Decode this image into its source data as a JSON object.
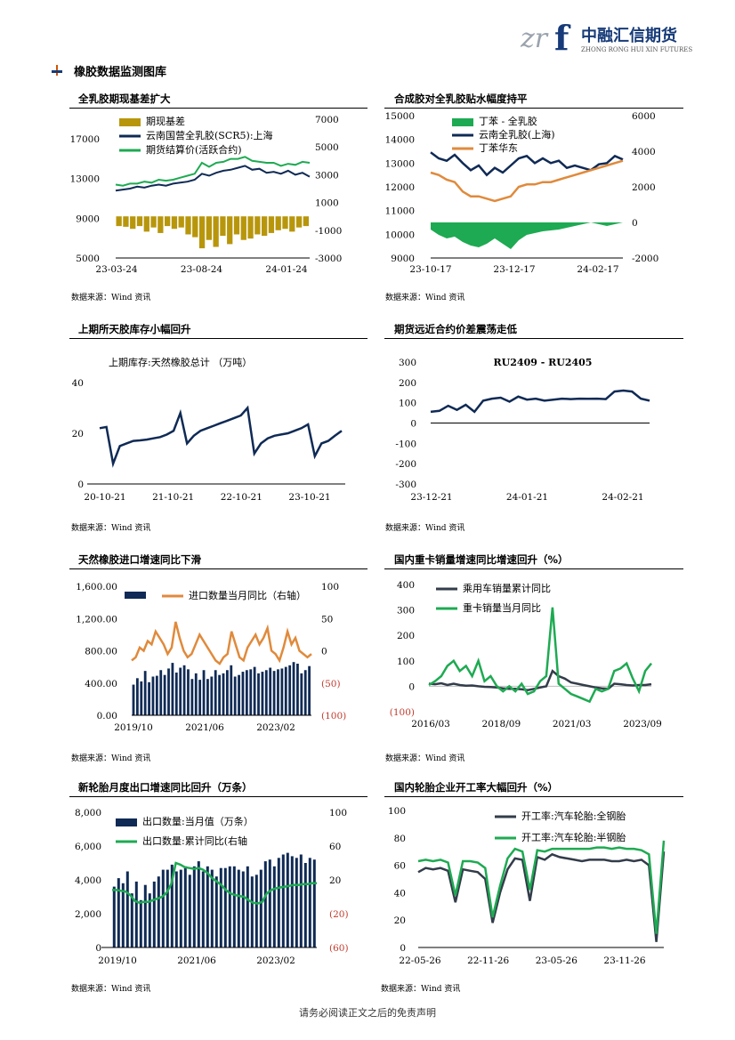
{
  "header": {
    "logo_cn": "中融汇信期货",
    "logo_en": "ZHONG RONG HUI XIN FUTURES",
    "logo_mark": "zrf"
  },
  "section_title": "橡胶数据监测图库",
  "footer": "请务必阅读正文之后的免责声明",
  "source_note": "数据来源：Wind 资讯",
  "colors": {
    "navy": "#0f2a55",
    "green": "#1eaa52",
    "orange": "#e08a3c",
    "gold": "#b8960c",
    "red": "#c0392b"
  },
  "charts": [
    {
      "heading": "全乳胶期现基差扩大",
      "chart_data": {
        "type": "line",
        "x_ticks": [
          "23-03-24",
          "23-08-24",
          "24-01-24"
        ],
        "y_ticks": [
          "17000",
          "13000",
          "9000",
          "5000"
        ],
        "y2_ticks": [
          "7000",
          "5000",
          "3000",
          "1000",
          "-1000",
          "-3000"
        ],
        "ylim": [
          5000,
          19000
        ],
        "y2lim": [
          -3000,
          7000
        ],
        "series": [
          {
            "name": "期现基差",
            "axis": "right",
            "kind": "bar",
            "values": [
              -700,
              -750,
              -900,
              -700,
              -1100,
              -800,
              -1200,
              -700,
              -900,
              -800,
              -1300,
              -1500,
              -2300,
              -1700,
              -2200,
              -1400,
              -2000,
              -1300,
              -1700,
              -1600,
              -1300,
              -1400,
              -1200,
              -1000,
              -900,
              -1100,
              -800,
              -700
            ]
          },
          {
            "name": "云南国营全乳胶(SCR5):上海",
            "axis": "left",
            "kind": "line",
            "values": [
              11800,
              11900,
              12000,
              12200,
              12100,
              12300,
              12400,
              12300,
              12500,
              12600,
              12700,
              12900,
              13500,
              13300,
              13600,
              13800,
              13900,
              14100,
              14300,
              13900,
              14000,
              13600,
              13700,
              13500,
              13800,
              13400,
              13600,
              13200
            ]
          },
          {
            "name": "期货结算价(活跃合约)",
            "axis": "left",
            "kind": "line",
            "values": [
              12400,
              12300,
              12500,
              12500,
              12700,
              12600,
              12900,
              12800,
              12900,
              13100,
              13300,
              13500,
              14600,
              14200,
              14600,
              14700,
              15000,
              15000,
              15200,
              14800,
              14700,
              14600,
              14600,
              14300,
              14500,
              14400,
              14700,
              14600
            ]
          }
        ]
      }
    },
    {
      "heading": "合成胶对全乳胶贴水幅度持平",
      "chart_data": {
        "type": "line",
        "x_ticks": [
          "23-10-17",
          "23-12-17",
          "24-02-17"
        ],
        "y_ticks": [
          "15000",
          "14000",
          "13000",
          "12000",
          "11000",
          "10000",
          "9000"
        ],
        "y2_ticks": [
          "6000",
          "4000",
          "2000",
          "0",
          "-2000"
        ],
        "ylim": [
          9000,
          15000
        ],
        "y2lim": [
          -2000,
          6000
        ],
        "series": [
          {
            "name": "丁苯 - 全乳胶",
            "axis": "right",
            "kind": "area",
            "values": [
              -400,
              -700,
              -900,
              -800,
              -1100,
              -1300,
              -1400,
              -1200,
              -900,
              -1200,
              -1500,
              -1000,
              -700,
              -600,
              -500,
              -450,
              -400,
              -300,
              -200,
              -100,
              0,
              -100,
              -200,
              -100,
              0
            ]
          },
          {
            "name": "云南全乳胶(上海)",
            "axis": "left",
            "kind": "line",
            "values": [
              13450,
              13200,
              13100,
              13350,
              13000,
              12700,
              12900,
              12500,
              12800,
              12600,
              12900,
              13200,
              13300,
              13000,
              13200,
              13000,
              13100,
              12800,
              12900,
              12800,
              12700,
              12950,
              13000,
              13300,
              13150
            ]
          },
          {
            "name": "丁苯华东",
            "axis": "left",
            "kind": "line",
            "values": [
              12600,
              12500,
              12300,
              12200,
              11800,
              11600,
              11600,
              11500,
              11400,
              11500,
              11600,
              12000,
              12100,
              12100,
              12200,
              12200,
              12300,
              12400,
              12500,
              12600,
              12700,
              12800,
              12900,
              13000,
              13100
            ]
          }
        ]
      }
    },
    {
      "heading": "上期所天胶库存小幅回升",
      "chart_data": {
        "type": "line",
        "title": "上期库存:天然橡胶总计 （万吨）",
        "x_ticks": [
          "20-10-21",
          "21-10-21",
          "22-10-21",
          "23-10-21"
        ],
        "y_ticks": [
          "40",
          "20",
          "0"
        ],
        "ylim": [
          0,
          40
        ],
        "series": [
          {
            "name": "上期库存:天然橡胶总计",
            "values": [
              22,
              22.5,
              8,
              15,
              16,
              17,
              17.2,
              17.5,
              18,
              18.5,
              19.5,
              21,
              28,
              16,
              19,
              21,
              22,
              23,
              24,
              25,
              26,
              27,
              30,
              12,
              16,
              18,
              19,
              19.5,
              20,
              21,
              22,
              23.5,
              11,
              16,
              17,
              19,
              21
            ]
          }
        ]
      }
    },
    {
      "heading": "期货远近合约价差震荡走低",
      "chart_data": {
        "type": "line",
        "title": "RU2409 - RU2405",
        "x_ticks": [
          "23-12-21",
          "24-01-21",
          "24-02-21"
        ],
        "y_ticks": [
          "300",
          "200",
          "100",
          "0",
          "-100",
          "-200",
          "-300"
        ],
        "ylim": [
          -300,
          300
        ],
        "series": [
          {
            "name": "RU2409 - RU2405",
            "values": [
              55,
              60,
              85,
              65,
              90,
              55,
              110,
              120,
              125,
              105,
              130,
              115,
              120,
              110,
              115,
              120,
              118,
              120,
              119,
              120,
              118,
              155,
              160,
              155,
              120,
              110
            ]
          }
        ]
      }
    },
    {
      "heading": "天然橡胶进口增速同比下滑",
      "chart_data": {
        "type": "bar",
        "x_ticks": [
          "2019/10",
          "2021/06",
          "2023/02"
        ],
        "y_ticks": [
          "1,600.00",
          "1,200.00",
          "800.00",
          "400.00",
          "0.00"
        ],
        "y2_ticks": [
          "100",
          "50",
          "0",
          "(50)",
          "(100)"
        ],
        "ylim": [
          0,
          1600
        ],
        "y2lim": [
          -100,
          100
        ],
        "series": [
          {
            "name": "",
            "axis": "left",
            "kind": "bar",
            "values": [
              380,
              460,
              420,
              550,
              410,
              480,
              490,
              560,
              500,
              580,
              650,
              530,
              590,
              620,
              570,
              450,
              520,
              440,
              560,
              450,
              480,
              560,
              500,
              520,
              560,
              620,
              480,
              500,
              540,
              560,
              570,
              600,
              520,
              540,
              560,
              590,
              550,
              570,
              580,
              600,
              620,
              660,
              640,
              520,
              560,
              610
            ]
          },
          {
            "name": "进口数量当月同比（右轴）",
            "axis": "right",
            "kind": "line",
            "values": [
              -15,
              -10,
              5,
              0,
              15,
              10,
              30,
              20,
              10,
              -5,
              5,
              45,
              20,
              0,
              -10,
              -5,
              10,
              25,
              15,
              5,
              -5,
              -15,
              -20,
              -10,
              -5,
              30,
              10,
              -10,
              -15,
              5,
              15,
              25,
              10,
              20,
              35,
              0,
              -5,
              -15,
              5,
              30,
              10,
              20,
              0,
              -5,
              -10,
              -5
            ]
          }
        ]
      }
    },
    {
      "heading": "国内重卡销量增速同比增速回升（%）",
      "chart_data": {
        "type": "line",
        "x_ticks": [
          "2016/03",
          "2018/09",
          "2021/03",
          "2023/09"
        ],
        "y_ticks": [
          "400",
          "300",
          "200",
          "100",
          "0",
          "(100)"
        ],
        "ylim": [
          -100,
          400
        ],
        "series": [
          {
            "name": "乘用车销量累计同比",
            "values": [
              10,
              8,
              12,
              5,
              10,
              5,
              2,
              3,
              0,
              -2,
              -3,
              -5,
              -8,
              -10,
              -10,
              -12,
              -15,
              -10,
              -5,
              0,
              60,
              40,
              30,
              15,
              10,
              5,
              0,
              -5,
              -8,
              -10,
              10,
              8,
              5,
              3,
              5,
              5,
              8
            ]
          },
          {
            "name": "重卡销量当月同比",
            "values": [
              5,
              20,
              40,
              80,
              100,
              60,
              80,
              40,
              100,
              20,
              40,
              0,
              -20,
              0,
              -20,
              10,
              -30,
              -20,
              20,
              40,
              310,
              10,
              -10,
              -30,
              -40,
              -50,
              -60,
              -10,
              -20,
              -10,
              60,
              70,
              90,
              30,
              -20,
              60,
              90
            ]
          }
        ]
      }
    },
    {
      "heading": "新轮胎月度出口增速同比回升（万条）",
      "chart_data": {
        "type": "bar",
        "x_ticks": [
          "2019/10",
          "2021/06",
          "2023/02"
        ],
        "y_ticks": [
          "8,000",
          "6,000",
          "4,000",
          "2,000",
          "0"
        ],
        "y2_ticks": [
          "100",
          "60",
          "20",
          "(20)",
          "(60)"
        ],
        "ylim": [
          0,
          8000
        ],
        "y2lim": [
          -60,
          100
        ],
        "series": [
          {
            "name": "出口数量:当月值（万条）",
            "axis": "left",
            "kind": "bar",
            "values": [
              3600,
              4100,
              3800,
              4500,
              3200,
              3900,
              2800,
              3700,
              3200,
              3900,
              4200,
              4600,
              4600,
              4900,
              4500,
              4600,
              4800,
              4300,
              4800,
              5100,
              4500,
              4800,
              4600,
              4200,
              4700,
              4700,
              4800,
              4800,
              4600,
              4500,
              4800,
              4200,
              4300,
              4600,
              5100,
              5200,
              4800,
              5300,
              5500,
              5600,
              5400,
              5300,
              5500,
              5000,
              5300,
              5200
            ]
          },
          {
            "name": "出口数量:累计同比(右轴",
            "axis": "right",
            "kind": "line",
            "values": [
              8,
              8,
              7,
              6,
              2,
              -5,
              -7,
              -6,
              -6,
              -4,
              -2,
              0,
              5,
              15,
              40,
              38,
              35,
              34,
              33,
              34,
              32,
              28,
              22,
              18,
              14,
              8,
              4,
              2,
              1,
              0,
              -4,
              -7,
              -8,
              -6,
              4,
              8,
              10,
              11,
              12,
              13,
              14,
              14,
              15,
              15,
              16,
              16
            ]
          }
        ]
      }
    },
    {
      "heading": "国内轮胎企业开工率大幅回升（%）",
      "chart_data": {
        "type": "line",
        "x_ticks": [
          "22-05-26",
          "22-11-26",
          "23-05-26",
          "23-11-26"
        ],
        "y_ticks": [
          "100",
          "80",
          "60",
          "40",
          "20",
          "0"
        ],
        "ylim": [
          0,
          100
        ],
        "series": [
          {
            "name": "开工率:汽车轮胎:全钢胎",
            "values": [
              55,
              58,
              57,
              58,
              56,
              33,
              57,
              56,
              55,
              50,
              18,
              40,
              57,
              65,
              64,
              34,
              66,
              64,
              68,
              66,
              65,
              64,
              63,
              64,
              64,
              64,
              63,
              63,
              64,
              63,
              64,
              60,
              4,
              70
            ]
          },
          {
            "name": "开工率:汽车轮胎:半钢胎",
            "values": [
              63,
              64,
              63,
              64,
              62,
              38,
              63,
              63,
              62,
              58,
              22,
              45,
              65,
              72,
              70,
              42,
              71,
              70,
              72,
              72,
              72,
              72,
              72,
              72,
              73,
              73,
              72,
              73,
              72,
              72,
              71,
              68,
              10,
              78
            ]
          }
        ]
      }
    }
  ]
}
